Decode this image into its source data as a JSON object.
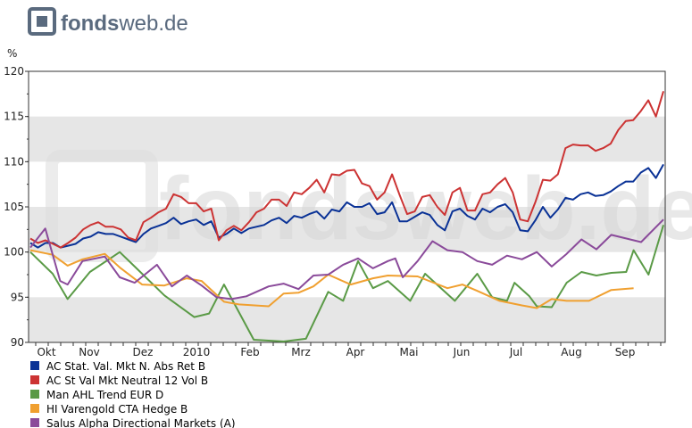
{
  "brand": {
    "name_bold": "fonds",
    "name_rest": "web.de",
    "logo_color": "#5a6a7e",
    "logo_icon": "fondsweb-square-logo"
  },
  "chart_data": {
    "type": "line",
    "ylabel": "%",
    "ylim": [
      90,
      120
    ],
    "yticks": [
      90,
      95,
      100,
      105,
      110,
      115,
      120
    ],
    "band_color": "#e6e6e6",
    "x_labels": [
      "Okt",
      "Nov",
      "Dez",
      "2010",
      "Feb",
      "Mrz",
      "Apr",
      "Mai",
      "Jun",
      "Jul",
      "Aug",
      "Sep"
    ],
    "grid": false,
    "legend_position": "bottom-left",
    "series": [
      {
        "name": "AC Stat. Val. Mkt N. Abs Ret B",
        "color": "#0a3296",
        "values": [
          101.0,
          100.5,
          101.0,
          101.0,
          100.5,
          100.7,
          100.9,
          101.5,
          101.7,
          102.2,
          102.0,
          102.0,
          101.7,
          101.4,
          101.1,
          102.0,
          102.6,
          102.9,
          103.2,
          103.8,
          103.1,
          103.4,
          103.6,
          103.0,
          103.4,
          101.6,
          102.0,
          102.6,
          102.1,
          102.6,
          102.8,
          103.0,
          103.5,
          103.8,
          103.2,
          104.0,
          103.8,
          104.2,
          104.5,
          103.7,
          104.7,
          104.5,
          105.5,
          105.0,
          105.0,
          105.4,
          104.2,
          104.4,
          105.5,
          103.4,
          103.4,
          103.9,
          104.4,
          104.1,
          103.0,
          102.4,
          104.5,
          104.8,
          104.0,
          103.6,
          104.8,
          104.4,
          105.0,
          105.3,
          104.4,
          102.4,
          102.3,
          103.5,
          105.0,
          103.8,
          104.7,
          106.0,
          105.8,
          106.4,
          106.6,
          106.2,
          106.3,
          106.7,
          107.3,
          107.8,
          107.8,
          108.8,
          109.3,
          108.2,
          109.7
        ],
        "label_color": "#0a3296"
      },
      {
        "name": "AC St Val Mkt Neutral 12 Vol B",
        "color": "#cc3333",
        "values": [
          101.5,
          101.0,
          101.3,
          100.9,
          100.5,
          101.0,
          101.6,
          102.5,
          103.0,
          103.3,
          102.8,
          102.8,
          102.5,
          101.6,
          101.3,
          103.3,
          103.8,
          104.4,
          104.8,
          106.4,
          106.1,
          105.4,
          105.4,
          104.5,
          104.8,
          101.3,
          102.4,
          102.9,
          102.4,
          103.3,
          104.4,
          104.8,
          105.8,
          105.8,
          105.1,
          106.6,
          106.4,
          107.1,
          108.0,
          106.6,
          108.6,
          108.5,
          109.0,
          109.1,
          107.6,
          107.3,
          105.8,
          106.6,
          108.6,
          106.3,
          104.2,
          104.5,
          106.1,
          106.3,
          105.0,
          104.1,
          106.6,
          107.1,
          104.6,
          104.6,
          106.4,
          106.6,
          107.5,
          108.2,
          106.6,
          103.6,
          103.4,
          105.5,
          108.0,
          107.9,
          108.6,
          111.5,
          111.9,
          111.8,
          111.8,
          111.2,
          111.5,
          112.0,
          113.5,
          114.5,
          114.6,
          115.6,
          116.8,
          115.0,
          117.8
        ],
        "label_color": "#cc3333"
      },
      {
        "name": "Man AHL Trend EUR D",
        "color": "#5a9a46",
        "values": [
          100.0,
          97.6,
          94.8,
          97.8,
          100.0,
          98.4,
          95.2,
          92.8,
          93.2,
          96.4,
          90.3,
          90.1,
          90.4,
          95.6,
          94.6,
          99.0,
          96.0,
          96.8,
          94.6,
          97.6,
          96.1,
          94.6,
          97.6,
          95.0,
          94.6,
          96.6,
          95.1,
          94.0,
          93.9,
          96.6,
          97.8,
          97.4,
          97.7,
          97.8,
          100.2,
          97.5,
          103.0
        ],
        "x_index": [
          0,
          3,
          5,
          8,
          12,
          14,
          18,
          22,
          24,
          26,
          30,
          34,
          37,
          40,
          42,
          44,
          46,
          48,
          51,
          53,
          55,
          57,
          60,
          62,
          64,
          65,
          67,
          68,
          70,
          72,
          74,
          76,
          78,
          80,
          81,
          83,
          85
        ],
        "label_color": "#5a9a46"
      },
      {
        "name": "HI Varengold CTA Hedge B",
        "color": "#f0a030",
        "values": [
          100.2,
          99.7,
          98.5,
          99.2,
          99.8,
          98.3,
          96.4,
          96.3,
          97.1,
          96.8,
          94.5,
          94.2,
          94.0,
          95.4,
          95.5,
          96.2,
          97.5,
          96.4,
          97.1,
          97.4,
          97.3,
          96.0,
          96.4,
          95.7,
          94.6,
          94.1,
          93.8,
          94.8,
          94.6,
          94.6,
          95.8,
          96.0
        ],
        "x_index": [
          0,
          3,
          5,
          7,
          10,
          12,
          15,
          18,
          21,
          23,
          26,
          28,
          32,
          34,
          36,
          38,
          40,
          43,
          46,
          48,
          52,
          56,
          58,
          60,
          63,
          66,
          68,
          70,
          72,
          75,
          78,
          81
        ],
        "label_color": "#f0a030"
      },
      {
        "name": "Salus Alpha Directional Markets (A)",
        "color": "#8a4a9a",
        "values": [
          100.5,
          102.6,
          96.8,
          96.4,
          99.0,
          99.5,
          97.2,
          96.6,
          98.6,
          96.2,
          97.4,
          96.3,
          95.0,
          94.8,
          95.1,
          96.2,
          96.5,
          95.9,
          97.4,
          97.5,
          98.6,
          99.3,
          98.2,
          99.0,
          99.3,
          97.2,
          99.0,
          101.2,
          100.2,
          100.0,
          99.0,
          98.6,
          99.6,
          99.2,
          100.0,
          98.4,
          99.8,
          101.4,
          100.3,
          101.9,
          101.1,
          103.6
        ],
        "x_index": [
          0,
          2,
          4,
          5,
          7,
          10,
          12,
          14,
          17,
          19,
          21,
          23,
          25,
          27,
          29,
          32,
          34,
          36,
          38,
          40,
          42,
          44,
          46,
          48,
          49,
          50,
          52,
          54,
          56,
          58,
          60,
          62,
          64,
          66,
          68,
          70,
          72,
          74,
          76,
          78,
          82,
          85
        ],
        "label_color": "#8a4a9a"
      }
    ]
  }
}
